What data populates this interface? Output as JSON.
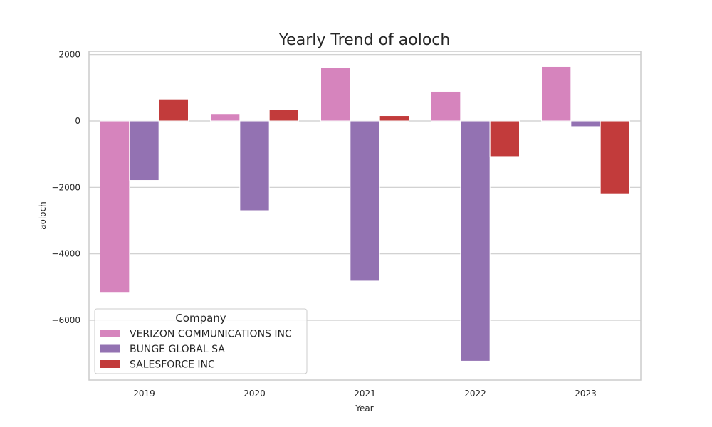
{
  "chart_data": {
    "type": "bar",
    "title": "Yearly Trend of aoloch",
    "xlabel": "Year",
    "ylabel": "aoloch",
    "categories": [
      "2019",
      "2020",
      "2021",
      "2022",
      "2023"
    ],
    "ylim": [
      -7800,
      2100
    ],
    "yticks": [
      2000,
      0,
      -2000,
      -4000,
      -6000
    ],
    "ytick_labels": [
      "2000",
      "0",
      "−2000",
      "−4000",
      "−6000"
    ],
    "grid": true,
    "legend": {
      "title": "Company",
      "position": "lower-left"
    },
    "series": [
      {
        "name": "VERIZON COMMUNICATIONS INC",
        "color": "#d684bd",
        "values": [
          -5180,
          220,
          1600,
          890,
          1640
        ]
      },
      {
        "name": "BUNGE GLOBAL SA",
        "color": "#9372b2",
        "values": [
          -1790,
          -2700,
          -4820,
          -7230,
          -170
        ]
      },
      {
        "name": "SALESFORCE INC",
        "color": "#c23b3b",
        "values": [
          660,
          340,
          160,
          -1070,
          -2190
        ]
      }
    ]
  }
}
